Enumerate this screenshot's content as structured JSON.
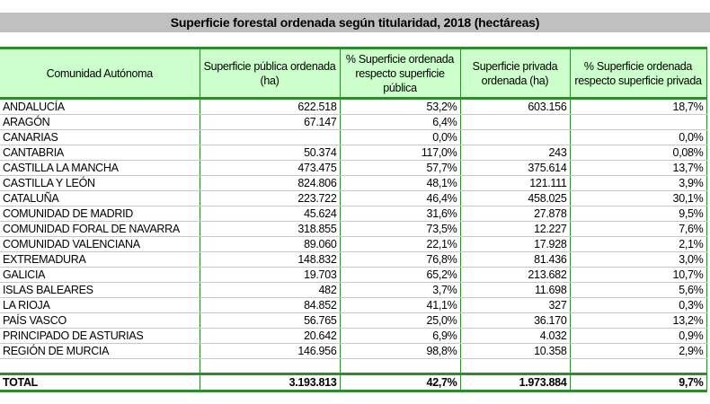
{
  "title": "Superficie forestal ordenada según  titularidad, 2018 (hectáreas)",
  "headers": [
    "Comunidad Autónoma",
    "Superficie pública ordenada (ha)",
    "% Superficie ordenada respecto superficie pública",
    "Superficie privada ordenada (ha)",
    "% Superficie ordenada respecto superficie privada"
  ],
  "rows": [
    [
      "ANDALUCÍA",
      "622.518",
      "53,2%",
      "603.156",
      "18,7%"
    ],
    [
      "ARAGÓN",
      "67.147",
      "6,4%",
      "",
      ""
    ],
    [
      "CANARIAS",
      "",
      "0,0%",
      "",
      "0,0%"
    ],
    [
      "CANTABRIA",
      "50.374",
      "117,0%",
      "243",
      "0,08%"
    ],
    [
      "CASTILLA LA MANCHA",
      "473.475",
      "57,7%",
      "375.614",
      "13,7%"
    ],
    [
      "CASTILLA Y LEÓN",
      "824.806",
      "48,1%",
      "121.111",
      "3,9%"
    ],
    [
      "CATALUÑA",
      "223.722",
      "46,4%",
      "458.025",
      "30,1%"
    ],
    [
      "COMUNIDAD DE MADRID",
      "45.624",
      "31,6%",
      "27.878",
      "9,5%"
    ],
    [
      "COMUNIDAD FORAL DE NAVARRA",
      "318.855",
      "73,5%",
      "12.227",
      "7,6%"
    ],
    [
      "COMUNIDAD VALENCIANA",
      "89.060",
      "22,1%",
      "17.928",
      "2,1%"
    ],
    [
      "EXTREMADURA",
      "148.832",
      "76,8%",
      "81.436",
      "3,0%"
    ],
    [
      "GALICIA",
      "19.703",
      "65,2%",
      "213.682",
      "10,7%"
    ],
    [
      "ISLAS BALEARES",
      "482",
      "3,7%",
      "11.698",
      "5,6%"
    ],
    [
      "LA RIOJA",
      "84.852",
      "41,1%",
      "327",
      "0,3%"
    ],
    [
      "PAÍS VASCO",
      "56.765",
      "25,0%",
      "36.170",
      "13,2%"
    ],
    [
      "PRINCIPADO DE ASTURIAS",
      "20.642",
      "6,9%",
      "4.032",
      "0,9%"
    ],
    [
      "REGIÓN DE MURCIA",
      "146.956",
      "98,8%",
      "10.358",
      "2,9%"
    ]
  ],
  "total": [
    "TOTAL",
    "3.193.813",
    "42,7%",
    "1.973.884",
    "9,7%"
  ]
}
